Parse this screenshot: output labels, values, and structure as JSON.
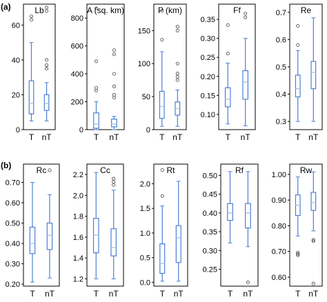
{
  "colors": {
    "box": "#4a7fd4",
    "median": "#a9c3ea",
    "outlier": "#444444",
    "frame": "#000000"
  },
  "panel_labels": [
    "(a)",
    "(b)"
  ],
  "chart_data": [
    {
      "type": "box",
      "title": "Lb",
      "categories": [
        "T",
        "nT"
      ],
      "yticks": [
        0,
        20,
        40,
        60
      ],
      "ylim": [
        0,
        72
      ],
      "boxes": [
        {
          "min": 5,
          "q1": 9,
          "median": 15,
          "q3": 28,
          "max": 50,
          "outliers": [
            63,
            65
          ]
        },
        {
          "min": 5,
          "q1": 11,
          "median": 15,
          "q3": 20,
          "max": 27,
          "outliers": [
            35,
            37,
            40,
            68,
            70
          ]
        }
      ]
    },
    {
      "type": "box",
      "title": "A (sq. km)",
      "categories": [
        "T",
        "nT"
      ],
      "yticks": [
        0,
        200,
        400,
        600,
        800
      ],
      "ylim": [
        0,
        900
      ],
      "boxes": [
        {
          "min": 0,
          "q1": 10,
          "median": 40,
          "q3": 120,
          "max": 200,
          "outliers": [
            280,
            300,
            490,
            870
          ]
        },
        {
          "min": 0,
          "q1": 20,
          "median": 40,
          "q3": 75,
          "max": 95,
          "outliers": [
            230,
            250,
            310,
            400,
            540,
            570
          ]
        }
      ]
    },
    {
      "type": "box",
      "title": "P (km)",
      "categories": [
        "T",
        "nT"
      ],
      "yticks": [
        0,
        50,
        100,
        150
      ],
      "ylim": [
        0,
        190
      ],
      "boxes": [
        {
          "min": 5,
          "q1": 17,
          "median": 35,
          "q3": 58,
          "max": 118,
          "outliers": [
            136,
            180
          ]
        },
        {
          "min": 5,
          "q1": 22,
          "median": 32,
          "q3": 42,
          "max": 60,
          "outliers": [
            75,
            80,
            85,
            100,
            150,
            156
          ]
        }
      ]
    },
    {
      "type": "box",
      "title": "Ff",
      "categories": [
        "T",
        "nT"
      ],
      "yticks": [
        0.1,
        0.15,
        0.2,
        0.25,
        0.3,
        0.35
      ],
      "ylim": [
        0.06,
        0.39
      ],
      "boxes": [
        {
          "min": 0.075,
          "q1": 0.12,
          "median": 0.14,
          "q3": 0.17,
          "max": 0.235,
          "outliers": [
            0.26,
            0.335
          ]
        },
        {
          "min": 0.07,
          "q1": 0.14,
          "median": 0.185,
          "q3": 0.215,
          "max": 0.3,
          "outliers": [
            0.355,
            0.365
          ]
        }
      ]
    },
    {
      "type": "box",
      "title": "Re",
      "categories": [
        "T",
        "nT"
      ],
      "yticks": [
        0.3,
        0.4,
        0.5,
        0.6,
        0.7
      ],
      "ylim": [
        0.27,
        0.73
      ],
      "boxes": [
        {
          "min": 0.3,
          "q1": 0.39,
          "median": 0.42,
          "q3": 0.47,
          "max": 0.56,
          "outliers": [
            0.58,
            0.65
          ]
        },
        {
          "min": 0.3,
          "q1": 0.42,
          "median": 0.48,
          "q3": 0.52,
          "max": 0.68,
          "outliers": []
        }
      ]
    },
    {
      "type": "box",
      "title": "Rc",
      "categories": [
        "T",
        "nT"
      ],
      "yticks": [
        0.2,
        0.3,
        0.4,
        0.5,
        0.6,
        0.7
      ],
      "ylim": [
        0.19,
        0.79
      ],
      "boxes": [
        {
          "min": 0.21,
          "q1": 0.35,
          "median": 0.4,
          "q3": 0.48,
          "max": 0.7,
          "outliers": []
        },
        {
          "min": 0.23,
          "q1": 0.37,
          "median": 0.44,
          "q3": 0.5,
          "max": 0.64,
          "outliers": [
            0.76
          ]
        }
      ]
    },
    {
      "type": "box",
      "title": "Cc",
      "categories": [
        "T",
        "nT"
      ],
      "yticks": [
        1.2,
        1.4,
        1.6,
        1.8,
        2.0,
        2.2
      ],
      "ylim": [
        1.13,
        2.3
      ],
      "boxes": [
        {
          "min": 1.2,
          "q1": 1.45,
          "median": 1.62,
          "q3": 1.78,
          "max": 2.22,
          "outliers": []
        },
        {
          "min": 1.2,
          "q1": 1.42,
          "median": 1.5,
          "q3": 1.68,
          "max": 2.05,
          "outliers": [
            2.1,
            2.13,
            2.16
          ]
        }
      ]
    },
    {
      "type": "box",
      "title": "Rt",
      "categories": [
        "T",
        "nT"
      ],
      "yticks": [
        0.0,
        0.5,
        1.0,
        1.5,
        2.0
      ],
      "ylim": [
        -0.08,
        2.4
      ],
      "boxes": [
        {
          "min": 0.02,
          "q1": 0.18,
          "median": 0.38,
          "q3": 0.78,
          "max": 1.55,
          "outliers": [
            1.75,
            2.28
          ]
        },
        {
          "min": 0.02,
          "q1": 0.4,
          "median": 0.9,
          "q3": 1.15,
          "max": 2.05,
          "outliers": []
        }
      ]
    },
    {
      "type": "box",
      "title": "Rf",
      "categories": [
        "T",
        "nT"
      ],
      "yticks": [
        0.25,
        0.3,
        0.35,
        0.4,
        0.45,
        0.5
      ],
      "ylim": [
        0.205,
        0.53
      ],
      "boxes": [
        {
          "min": 0.32,
          "q1": 0.38,
          "median": 0.4,
          "q3": 0.425,
          "max": 0.51,
          "outliers": []
        },
        {
          "min": 0.31,
          "q1": 0.36,
          "median": 0.4,
          "q3": 0.425,
          "max": 0.51,
          "outliers": [
            0.215
          ]
        }
      ]
    },
    {
      "type": "box",
      "title": "Rw",
      "categories": [
        "T",
        "nT"
      ],
      "yticks": [
        0.6,
        0.7,
        0.8,
        0.9,
        1.0
      ],
      "ylim": [
        0.565,
        1.04
      ],
      "boxes": [
        {
          "min": 0.76,
          "q1": 0.84,
          "median": 0.88,
          "q3": 0.92,
          "max": 0.99,
          "outliers": [
            0.685,
            0.69,
            0.695
          ]
        },
        {
          "min": 0.78,
          "q1": 0.86,
          "median": 0.89,
          "q3": 0.93,
          "max": 1.01,
          "outliers": [
            0.74,
            0.745,
            0.575
          ]
        }
      ]
    }
  ]
}
